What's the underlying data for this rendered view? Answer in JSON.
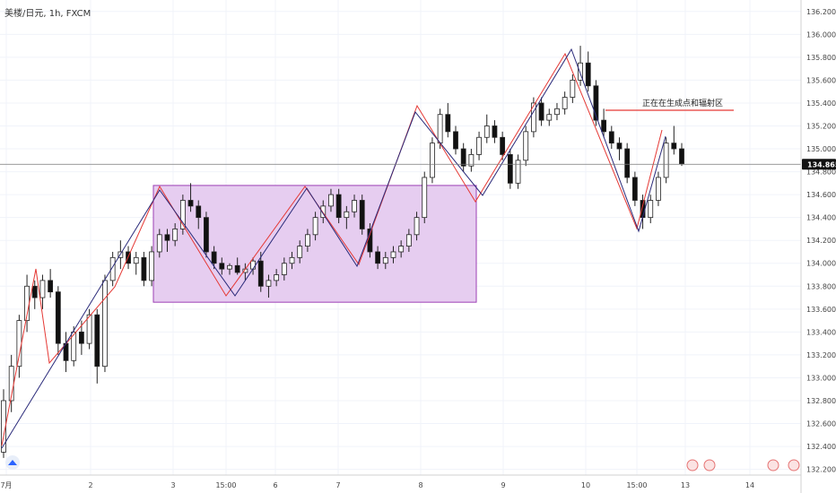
{
  "header": {
    "symbol_text": "美楼/日元, 1h, FXCM"
  },
  "chart_data": {
    "type": "candlestick",
    "title": "",
    "ylim": [
      132.15,
      136.3
    ],
    "y_ticks": [
      "136.200",
      "136.000",
      "135.800",
      "135.600",
      "135.400",
      "135.200",
      "135.000",
      "134.800",
      "134.600",
      "134.400",
      "134.200",
      "134.000",
      "133.800",
      "133.600",
      "133.400",
      "133.200",
      "133.000",
      "132.800",
      "132.600",
      "132.400",
      "132.200"
    ],
    "x_ticks": [
      "7月",
      "2",
      "3",
      "15:00",
      "6",
      "7",
      "8",
      "9",
      "10",
      "15:00",
      "13",
      "14"
    ],
    "current_price": "134.865",
    "annotation": "正在在生成点和辐射区",
    "rectangle_zone": {
      "from_tick": "3",
      "to_tick": "8",
      "top": 134.68,
      "bottom": 133.66
    },
    "candles_ohlc": [
      [
        132.35,
        132.9,
        132.3,
        132.8
      ],
      [
        132.8,
        133.2,
        132.7,
        133.1
      ],
      [
        133.1,
        133.55,
        133.0,
        133.5
      ],
      [
        133.5,
        133.9,
        133.4,
        133.8
      ],
      [
        133.8,
        133.85,
        133.6,
        133.7
      ],
      [
        133.7,
        133.9,
        133.6,
        133.85
      ],
      [
        133.85,
        133.95,
        133.7,
        133.75
      ],
      [
        133.75,
        133.8,
        133.2,
        133.3
      ],
      [
        133.3,
        133.4,
        133.05,
        133.15
      ],
      [
        133.15,
        133.45,
        133.1,
        133.4
      ],
      [
        133.4,
        133.5,
        133.2,
        133.3
      ],
      [
        133.3,
        133.6,
        133.25,
        133.55
      ],
      [
        133.55,
        133.6,
        132.95,
        133.1
      ],
      [
        133.1,
        133.9,
        133.05,
        133.85
      ],
      [
        133.85,
        134.1,
        133.8,
        134.05
      ],
      [
        134.05,
        134.2,
        133.95,
        134.1
      ],
      [
        134.1,
        134.15,
        133.95,
        134.0
      ],
      [
        134.0,
        134.1,
        133.9,
        134.05
      ],
      [
        134.05,
        134.1,
        133.8,
        133.85
      ],
      [
        133.85,
        134.15,
        133.8,
        134.1
      ],
      [
        134.1,
        134.3,
        134.05,
        134.25
      ],
      [
        134.25,
        134.3,
        134.1,
        134.2
      ],
      [
        134.2,
        134.35,
        134.15,
        134.3
      ],
      [
        134.3,
        134.6,
        134.25,
        134.55
      ],
      [
        134.55,
        134.7,
        134.45,
        134.5
      ],
      [
        134.5,
        134.55,
        134.3,
        134.4
      ],
      [
        134.4,
        134.45,
        134.05,
        134.1
      ],
      [
        134.1,
        134.15,
        133.95,
        134.0
      ],
      [
        134.0,
        134.05,
        133.9,
        133.95
      ],
      [
        133.95,
        134.0,
        133.9,
        133.98
      ],
      [
        133.98,
        134.05,
        133.9,
        133.92
      ],
      [
        133.92,
        134.0,
        133.85,
        133.95
      ],
      [
        133.95,
        134.05,
        133.9,
        134.02
      ],
      [
        134.02,
        134.1,
        133.75,
        133.8
      ],
      [
        133.8,
        133.9,
        133.7,
        133.85
      ],
      [
        133.85,
        133.95,
        133.8,
        133.9
      ],
      [
        133.9,
        134.05,
        133.85,
        134.0
      ],
      [
        134.0,
        134.1,
        133.95,
        134.05
      ],
      [
        134.05,
        134.2,
        134.0,
        134.15
      ],
      [
        134.15,
        134.3,
        134.1,
        134.25
      ],
      [
        134.25,
        134.45,
        134.2,
        134.4
      ],
      [
        134.4,
        134.55,
        134.35,
        134.5
      ],
      [
        134.5,
        134.65,
        134.45,
        134.6
      ],
      [
        134.6,
        134.65,
        134.35,
        134.4
      ],
      [
        134.4,
        134.5,
        134.3,
        134.45
      ],
      [
        134.45,
        134.6,
        134.4,
        134.55
      ],
      [
        134.55,
        134.6,
        134.25,
        134.3
      ],
      [
        134.3,
        134.35,
        134.05,
        134.1
      ],
      [
        134.1,
        134.15,
        133.95,
        134.0
      ],
      [
        134.0,
        134.1,
        133.95,
        134.05
      ],
      [
        134.05,
        134.15,
        134.0,
        134.1
      ],
      [
        134.1,
        134.2,
        134.05,
        134.15
      ],
      [
        134.15,
        134.3,
        134.1,
        134.25
      ],
      [
        134.25,
        134.45,
        134.2,
        134.4
      ],
      [
        134.4,
        134.8,
        134.35,
        134.75
      ],
      [
        134.75,
        135.1,
        134.7,
        135.05
      ],
      [
        135.05,
        135.35,
        135.0,
        135.3
      ],
      [
        135.3,
        135.4,
        135.1,
        135.15
      ],
      [
        135.15,
        135.2,
        134.95,
        135.0
      ],
      [
        135.0,
        135.05,
        134.8,
        134.85
      ],
      [
        134.85,
        135.0,
        134.8,
        134.95
      ],
      [
        134.95,
        135.15,
        134.9,
        135.1
      ],
      [
        135.1,
        135.3,
        135.05,
        135.2
      ],
      [
        135.2,
        135.25,
        135.05,
        135.1
      ],
      [
        135.1,
        135.15,
        134.9,
        134.95
      ],
      [
        134.95,
        135.0,
        134.65,
        134.7
      ],
      [
        134.7,
        134.95,
        134.65,
        134.9
      ],
      [
        134.9,
        135.2,
        134.85,
        135.15
      ],
      [
        135.15,
        135.45,
        135.1,
        135.4
      ],
      [
        135.4,
        135.45,
        135.2,
        135.25
      ],
      [
        135.25,
        135.35,
        135.2,
        135.3
      ],
      [
        135.3,
        135.4,
        135.25,
        135.35
      ],
      [
        135.35,
        135.5,
        135.3,
        135.45
      ],
      [
        135.45,
        135.65,
        135.4,
        135.6
      ],
      [
        135.6,
        135.9,
        135.55,
        135.75
      ],
      [
        135.75,
        135.85,
        135.5,
        135.55
      ],
      [
        135.55,
        135.6,
        135.2,
        135.25
      ],
      [
        135.25,
        135.35,
        135.1,
        135.15
      ],
      [
        135.15,
        135.2,
        135.0,
        135.05
      ],
      [
        135.05,
        135.1,
        134.9,
        135.0
      ],
      [
        135.0,
        135.05,
        134.7,
        134.75
      ],
      [
        134.75,
        134.8,
        134.5,
        134.55
      ],
      [
        134.55,
        134.6,
        134.3,
        134.4
      ],
      [
        134.4,
        134.6,
        134.35,
        134.55
      ],
      [
        134.55,
        134.8,
        134.5,
        134.75
      ],
      [
        134.75,
        135.1,
        134.7,
        135.05
      ],
      [
        135.05,
        135.2,
        134.95,
        135.0
      ],
      [
        135.0,
        135.05,
        134.85,
        134.87
      ]
    ]
  }
}
